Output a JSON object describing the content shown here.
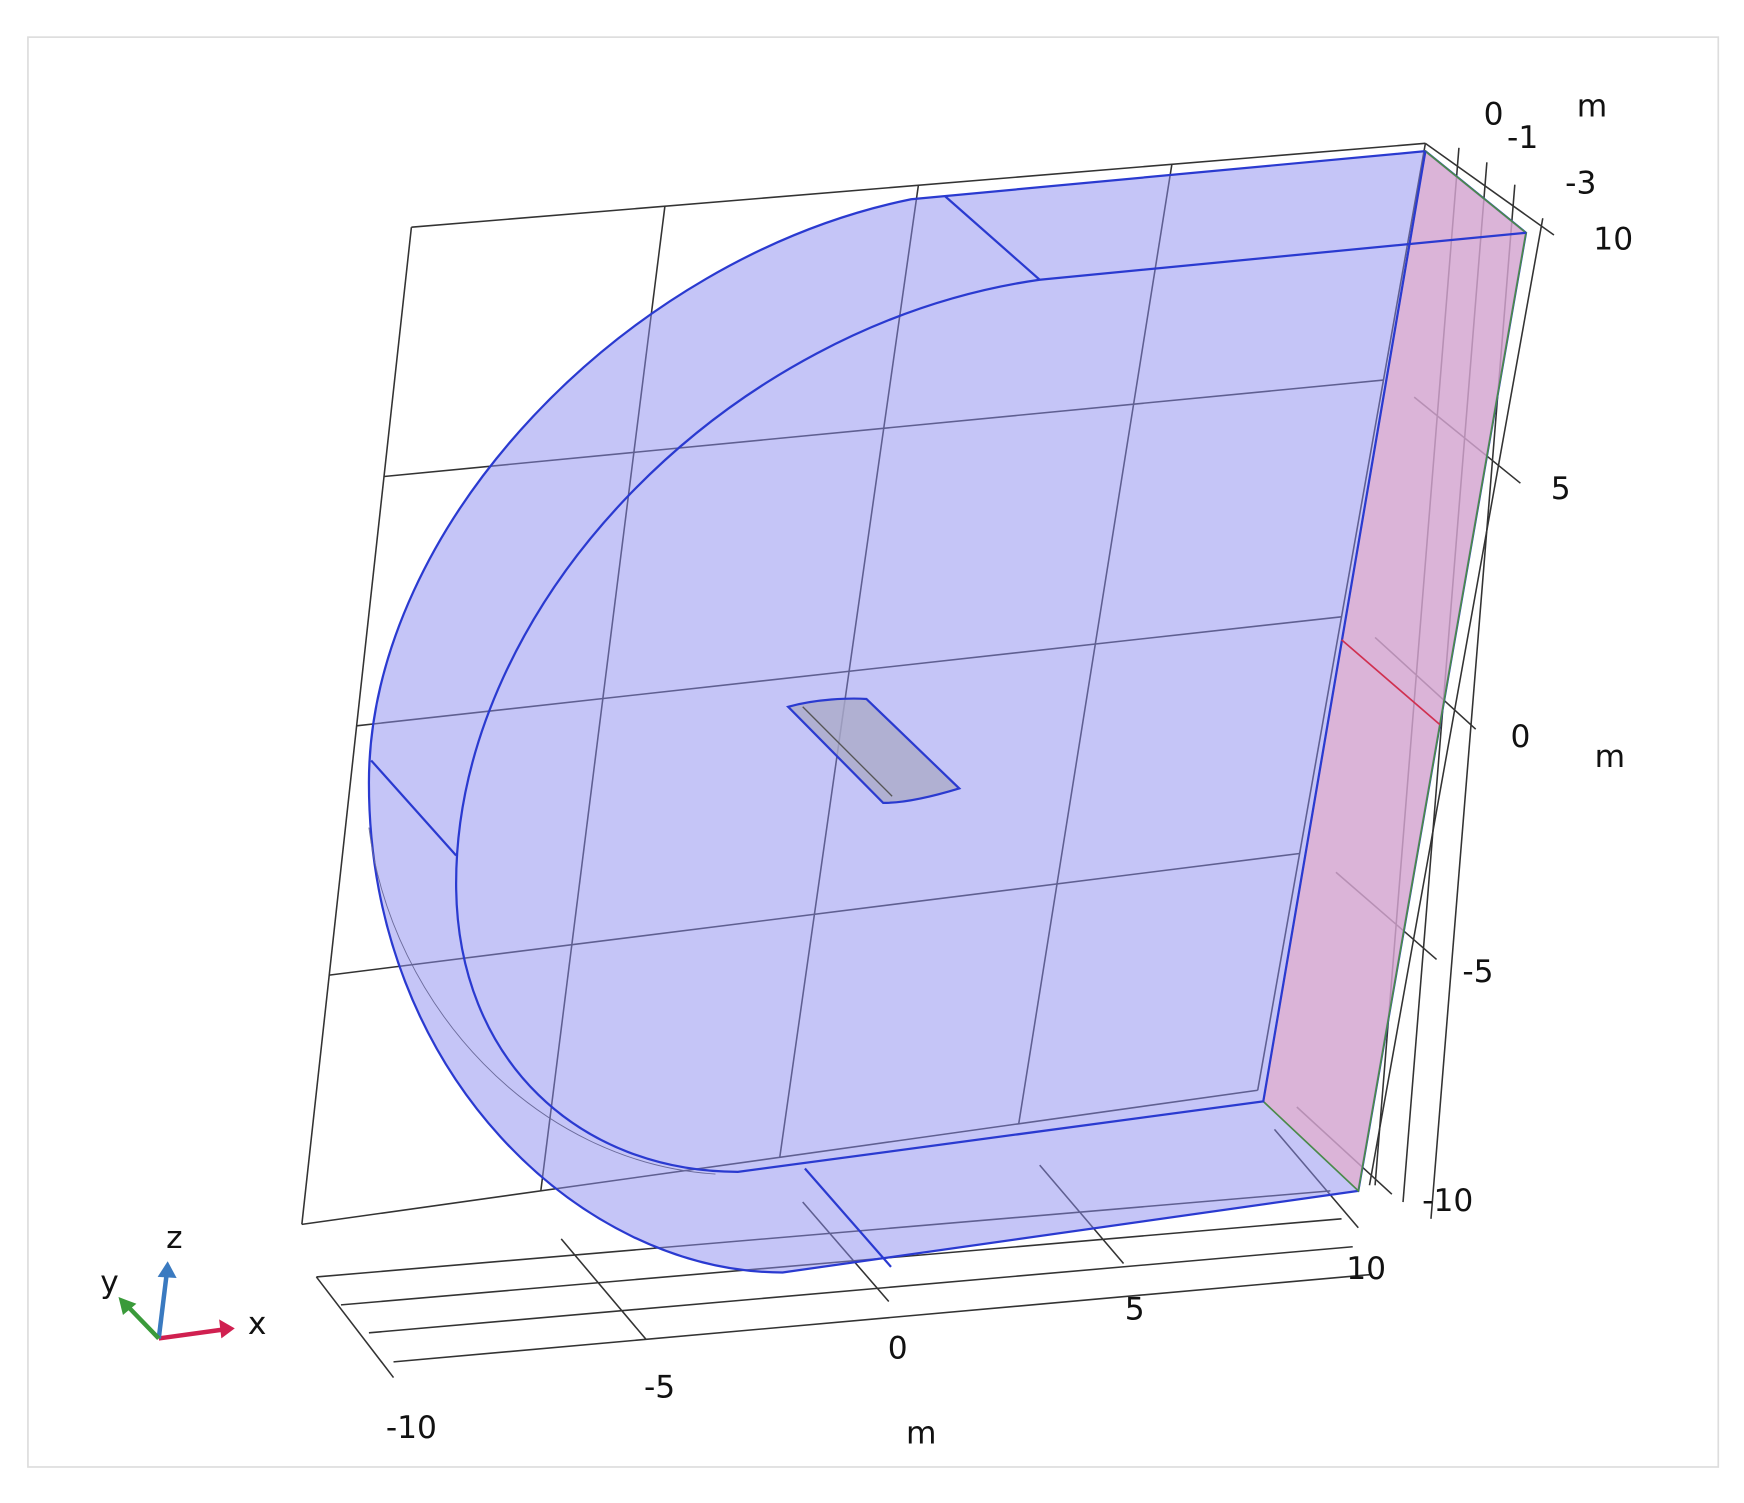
{
  "x_axis": {
    "ticks": [
      "-10",
      "-5",
      "0",
      "5",
      "10"
    ],
    "unit": "m"
  },
  "y_axis": {
    "ticks": [
      "0",
      "-1",
      "-3"
    ],
    "unit": "m"
  },
  "z_axis": {
    "ticks": [
      "10",
      "5",
      "0",
      "-5",
      "-10"
    ],
    "unit": "m"
  },
  "triad": {
    "x": "x",
    "y": "y",
    "z": "z"
  }
}
